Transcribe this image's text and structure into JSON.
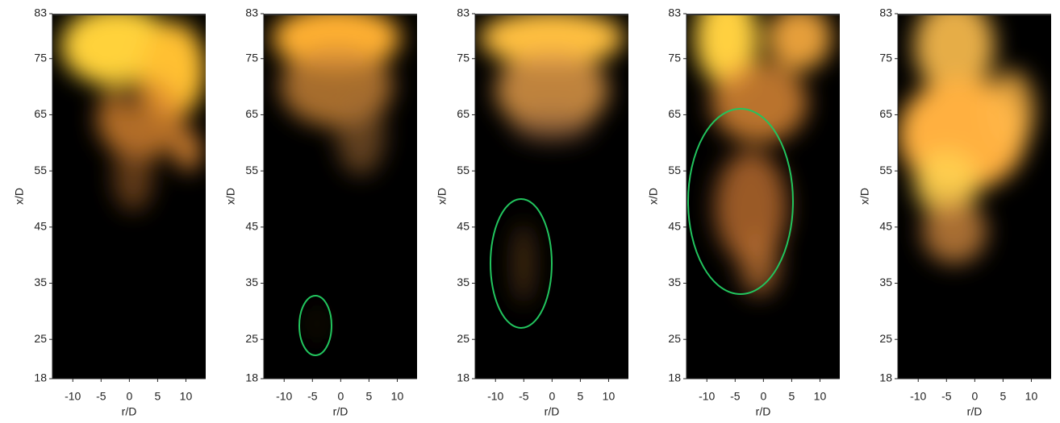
{
  "chart_data": [
    {
      "type": "image",
      "xlabel": "r/D",
      "ylabel": "x/D",
      "xlim": [
        -13.6,
        13.5
      ],
      "ylim": [
        18,
        83
      ],
      "xticks": [
        -10,
        -5,
        0,
        5,
        10
      ],
      "yticks": [
        18,
        25,
        35,
        45,
        55,
        65,
        75,
        83
      ]
    },
    {
      "type": "image",
      "xlabel": "r/D",
      "ylabel": "x/D",
      "xlim": [
        -13.6,
        13.5
      ],
      "ylim": [
        18,
        83
      ],
      "xticks": [
        -10,
        -5,
        0,
        5,
        10
      ],
      "yticks": [
        18,
        25,
        35,
        45,
        55,
        65,
        75,
        83
      ]
    },
    {
      "type": "image",
      "xlabel": "r/D",
      "ylabel": "x/D",
      "xlim": [
        -13.6,
        13.5
      ],
      "ylim": [
        18,
        83
      ],
      "xticks": [
        -10,
        -5,
        0,
        5,
        10
      ],
      "yticks": [
        18,
        25,
        35,
        45,
        55,
        65,
        75,
        83
      ]
    },
    {
      "type": "image",
      "xlabel": "r/D",
      "ylabel": "x/D",
      "xlim": [
        -13.6,
        13.5
      ],
      "ylim": [
        18,
        83
      ],
      "xticks": [
        -10,
        -5,
        0,
        5,
        10
      ],
      "yticks": [
        18,
        25,
        35,
        45,
        55,
        65,
        75,
        83
      ]
    },
    {
      "type": "image",
      "xlabel": "r/D",
      "ylabel": "x/D",
      "xlim": [
        -13.6,
        13.5
      ],
      "ylim": [
        18,
        83
      ],
      "xticks": [
        -10,
        -5,
        0,
        5,
        10
      ],
      "yticks": [
        18,
        25,
        35,
        45,
        55,
        65,
        75,
        83
      ]
    }
  ]
}
